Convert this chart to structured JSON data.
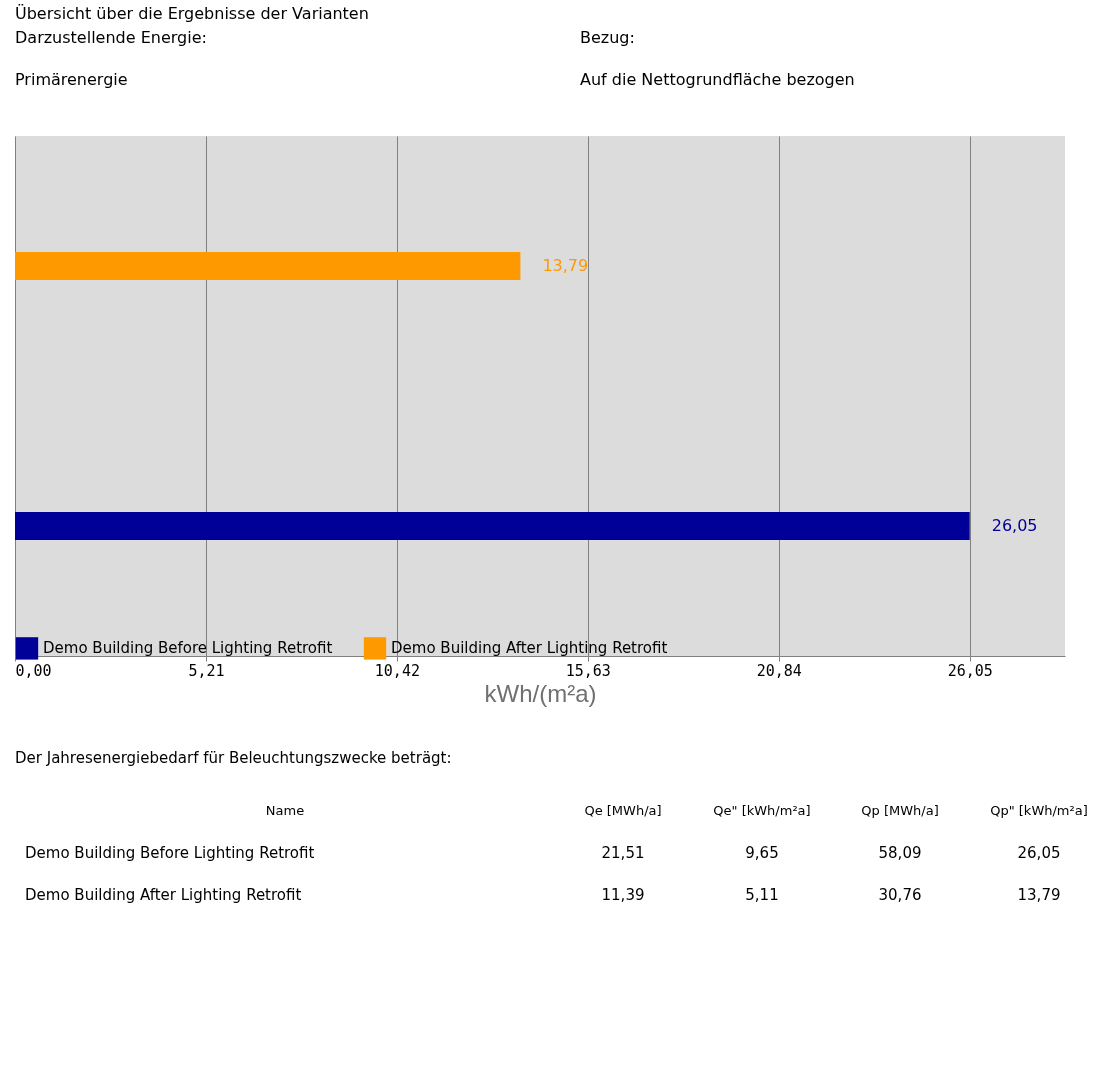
{
  "chart_data": {
    "type": "bar",
    "orientation": "horizontal",
    "title": "Übersicht über die Ergebnisse der Varianten",
    "categories": [
      null,
      null
    ],
    "series": [
      {
        "name": "Demo Building Before Lighting Retrofit",
        "color": "#000099",
        "values": [
          null,
          26.05
        ],
        "value_labels": [
          null,
          "26,05"
        ]
      },
      {
        "name": "Demo Building After Lighting Retrofit",
        "color": "#ff9900",
        "values": [
          13.79,
          null
        ],
        "value_labels": [
          "13,79",
          null
        ]
      }
    ],
    "xlim": [
      0,
      28.65
    ],
    "xticks": [
      {
        "value": 0,
        "label": "0,00"
      },
      {
        "value": 5.21,
        "label": "5,21"
      },
      {
        "value": 10.42,
        "label": "10,42"
      },
      {
        "value": 15.63,
        "label": "15,63"
      },
      {
        "value": 20.84,
        "label": "20,84"
      },
      {
        "value": 26.05,
        "label": "26,05"
      }
    ],
    "xlabel": "kWh/(m²a)",
    "grid": "x",
    "legend": "bottom",
    "tick_labels": "x",
    "annotations": [
      "Darzustellende Energie:",
      "Primärenergie",
      "Bezug:",
      "Auf die Nettogrundfläche bezogen",
      "Der Jahresenergiebedarf für Beleuchtungszwecke beträgt:",
      "Name",
      "Qe [MWh/a]",
      "Qe\" [kWh/m²a]",
      "Qp [MWh/a]",
      "Qp\" [kWh/m²a]",
      "Demo Building Before Lighting Retrofit",
      "21,51",
      "9,65",
      "58,09",
      "26,05",
      "Demo Building After Lighting Retrofit",
      "11,39",
      "5,11",
      "30,76",
      "13,79"
    ]
  }
}
